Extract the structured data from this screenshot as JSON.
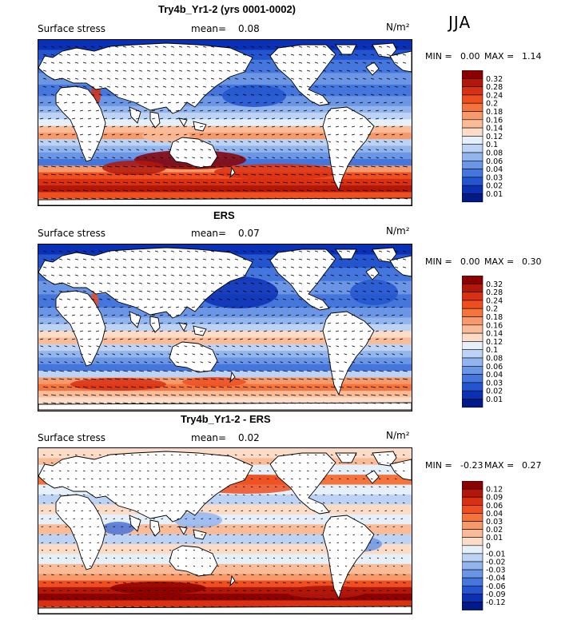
{
  "season": "JJA",
  "panels": [
    {
      "title": "Try4b_Yr1-2 (yrs 0001-0002)",
      "field": "Surface stress",
      "mean_label": "mean=",
      "mean_value": "0.08",
      "units": "N/m²",
      "min_label": "MIN =",
      "min_value": "0.00",
      "max_label": "MAX =",
      "max_value": "1.14",
      "colorbar": {
        "labels": [
          "0.32",
          "0.28",
          "0.24",
          "0.2",
          "0.18",
          "0.16",
          "0.14",
          "0.12",
          "0.1",
          "0.08",
          "0.06",
          "0.04",
          "0.03",
          "0.02",
          "0.01"
        ],
        "colors": [
          "#8b0000",
          "#b3170a",
          "#d93012",
          "#ef4e1e",
          "#f4743c",
          "#f79a6b",
          "#fabb98",
          "#fcdcc6",
          "#e6f0fb",
          "#bdd3f5",
          "#93b5ee",
          "#6b96e6",
          "#4576de",
          "#2255cf",
          "#0a30b5",
          "#001a88"
        ]
      }
    },
    {
      "title": "ERS",
      "field": "Surface stress",
      "mean_label": "mean=",
      "mean_value": "0.07",
      "units": "N/m²",
      "min_label": "MIN =",
      "min_value": "0.00",
      "max_label": "MAX =",
      "max_value": "0.30",
      "colorbar": {
        "labels": [
          "0.32",
          "0.28",
          "0.24",
          "0.2",
          "0.18",
          "0.16",
          "0.14",
          "0.12",
          "0.1",
          "0.08",
          "0.06",
          "0.04",
          "0.03",
          "0.02",
          "0.01"
        ],
        "colors": [
          "#8b0000",
          "#b3170a",
          "#d93012",
          "#ef4e1e",
          "#f4743c",
          "#f79a6b",
          "#fabb98",
          "#fcdcc6",
          "#e6f0fb",
          "#bdd3f5",
          "#93b5ee",
          "#6b96e6",
          "#4576de",
          "#2255cf",
          "#0a30b5",
          "#001a88"
        ]
      }
    },
    {
      "title": "Try4b_Yr1-2 - ERS",
      "field": "Surface stress",
      "mean_label": "mean=",
      "mean_value": "0.02",
      "units": "N/m²",
      "min_label": "MIN =",
      "min_value": "-0.23",
      "max_label": "MAX =",
      "max_value": "0.27",
      "colorbar": {
        "labels": [
          "0.12",
          "0.09",
          "0.06",
          "0.04",
          "0.03",
          "0.02",
          "0.01",
          "0",
          "-0.01",
          "-0.02",
          "-0.03",
          "-0.04",
          "-0.06",
          "-0.09",
          "-0.12"
        ],
        "colors": [
          "#8b0000",
          "#b3170a",
          "#d93012",
          "#ef4e1e",
          "#f4743c",
          "#f79a6b",
          "#fabb98",
          "#fcdcc6",
          "#e6f0fb",
          "#bdd3f5",
          "#93b5ee",
          "#6b96e6",
          "#4576de",
          "#2255cf",
          "#0a30b5",
          "#001a88"
        ]
      }
    }
  ],
  "chart_data": [
    {
      "type": "heatmap",
      "title": "Try4b_Yr1-2 (yrs 0001-0002)",
      "variable": "Surface stress",
      "units": "N/m²",
      "season": "JJA",
      "mean": 0.08,
      "min": 0.0,
      "max": 1.14,
      "contour_levels": [
        0.01,
        0.02,
        0.03,
        0.04,
        0.06,
        0.08,
        0.1,
        0.12,
        0.14,
        0.16,
        0.18,
        0.2,
        0.24,
        0.28,
        0.32
      ],
      "overlay": "wind stress vectors"
    },
    {
      "type": "heatmap",
      "title": "ERS",
      "variable": "Surface stress",
      "units": "N/m²",
      "season": "JJA",
      "mean": 0.07,
      "min": 0.0,
      "max": 0.3,
      "contour_levels": [
        0.01,
        0.02,
        0.03,
        0.04,
        0.06,
        0.08,
        0.1,
        0.12,
        0.14,
        0.16,
        0.18,
        0.2,
        0.24,
        0.28,
        0.32
      ],
      "overlay": "wind stress vectors"
    },
    {
      "type": "heatmap",
      "title": "Try4b_Yr1-2 - ERS",
      "variable": "Surface stress",
      "units": "N/m²",
      "season": "JJA",
      "mean": 0.02,
      "min": -0.23,
      "max": 0.27,
      "contour_levels": [
        -0.12,
        -0.09,
        -0.06,
        -0.04,
        -0.03,
        -0.02,
        -0.01,
        0,
        0.01,
        0.02,
        0.03,
        0.04,
        0.06,
        0.09,
        0.12
      ],
      "overlay": "wind stress difference vectors"
    }
  ]
}
